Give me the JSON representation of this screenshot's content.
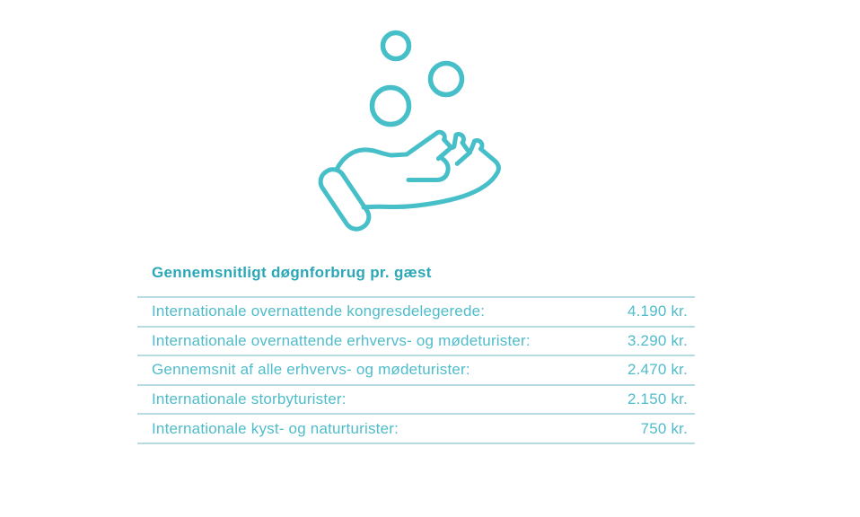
{
  "page": {
    "background": "#ffffff"
  },
  "icon": {
    "name": "hand-receiving-coins-icon",
    "description": "line icon of an open hand with three coins/bubbles above it",
    "color": "#46bfc9"
  },
  "table": {
    "title": "Gennemsnitligt døgnforbrug pr. gæst",
    "rows": [
      {
        "label": "Internationale overnattende kongresdelegerede:",
        "value": "4.190 kr."
      },
      {
        "label": "Internationale overnattende erhvervs- og mødeturister:",
        "value": "3.290 kr."
      },
      {
        "label": "Gennemsnit af alle erhvervs- og mødeturister:",
        "value": "2.470 kr."
      },
      {
        "label": "Internationale storbyturister:",
        "value": "2.150 kr."
      },
      {
        "label": "Internationale kyst- og naturturister:",
        "value": "750 kr."
      }
    ]
  },
  "colors": {
    "icon_stroke": "#46bfc9",
    "title_text": "#2ba7b7",
    "row_text": "#4fbcca",
    "divider": "#b7dbe2",
    "background": "#ffffff"
  },
  "chart_data": {
    "type": "table",
    "title": "Gennemsnitligt døgnforbrug pr. gæst",
    "categories": [
      "Internationale overnattende kongresdelegerede",
      "Internationale overnattende erhvervs- og mødeturister",
      "Gennemsnit af alle erhvervs- og mødeturister",
      "Internationale storbyturister",
      "Internationale kyst- og naturturister"
    ],
    "values": [
      4190,
      3290,
      2470,
      2150,
      750
    ],
    "unit": "kr.",
    "value_labels": [
      "4.190 kr.",
      "3.290 kr.",
      "2.470 kr.",
      "2.150 kr.",
      "750 kr."
    ],
    "legend": "none",
    "grid": "horizontal row dividers only"
  }
}
